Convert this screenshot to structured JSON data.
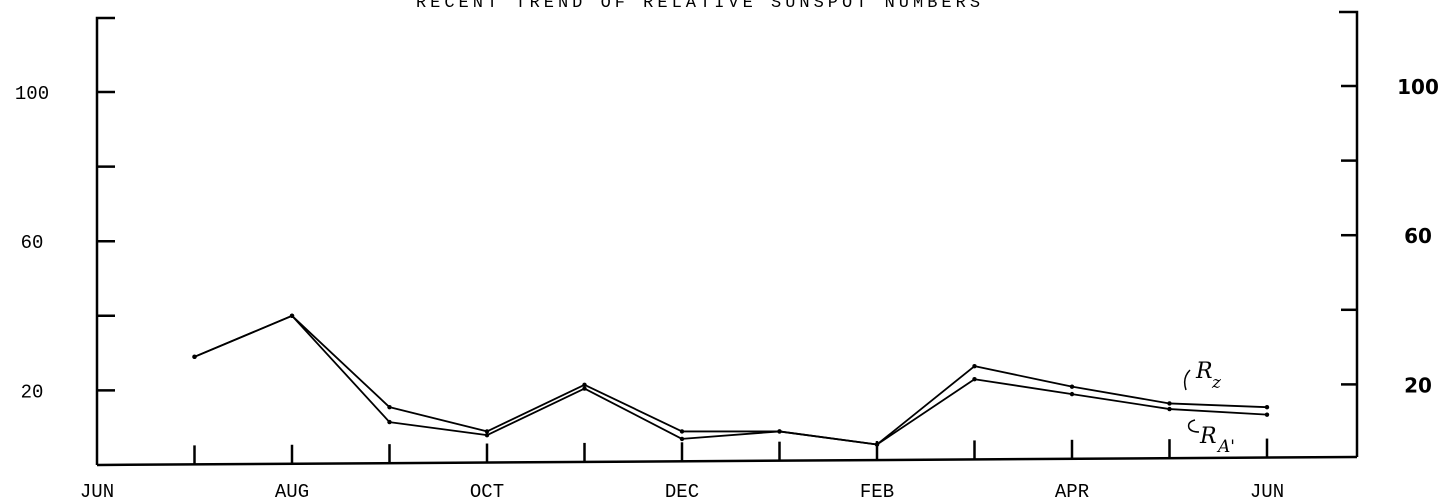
{
  "chart_data": {
    "type": "line",
    "title": "RECENT TREND OF RELATIVE SUNSPOT NUMBERS",
    "xlabel": "",
    "ylabel": "",
    "x_tick_labels": [
      "JUN",
      "AUG",
      "OCT",
      "DEC",
      "FEB",
      "APR",
      "JUN"
    ],
    "y_tick_labels_left": [
      "100",
      "60",
      "20"
    ],
    "y_tick_labels_right": [
      "100",
      "60",
      "20"
    ],
    "ylim": [
      0,
      120
    ],
    "y_major_ticks": [
      20,
      40,
      60,
      80,
      100
    ],
    "grid": false,
    "x": [
      1,
      2,
      3,
      4,
      5,
      6,
      7,
      8,
      9,
      10,
      11,
      12
    ],
    "xlim": [
      0,
      13
    ],
    "series": [
      {
        "name": "R_Z",
        "values": [
          29,
          40,
          15.5,
          9,
          21.5,
          9,
          9,
          5.5,
          26.5,
          21,
          16.5,
          15.5
        ]
      },
      {
        "name": "R_A'",
        "values": [
          29,
          40,
          11.5,
          8,
          20.5,
          7,
          9,
          5.5,
          23,
          19,
          15,
          13.5
        ]
      }
    ],
    "legend": "right, handwritten"
  }
}
